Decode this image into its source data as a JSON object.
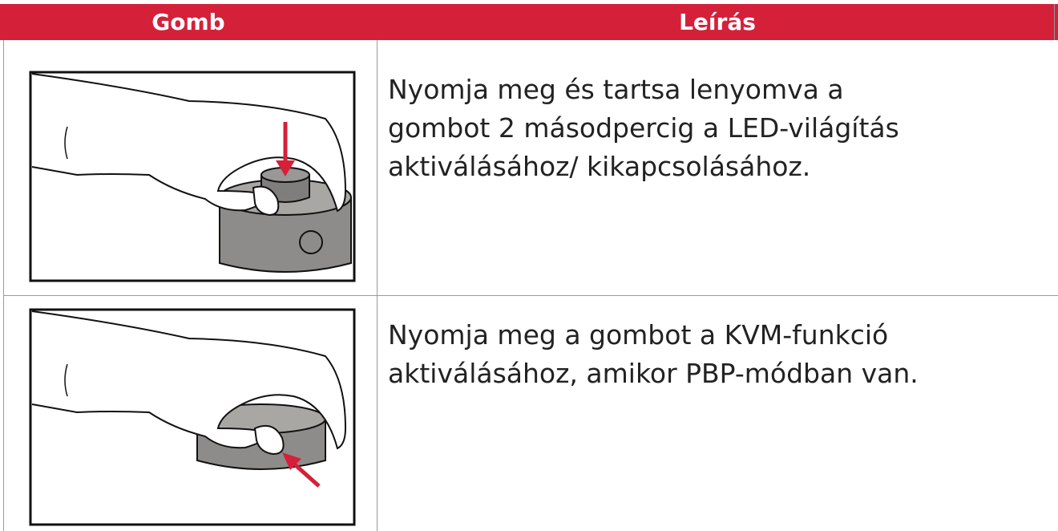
{
  "table": {
    "headers": [
      "Gomb",
      "Leírás"
    ],
    "rows": [
      {
        "description": "Nyomja meg és tartsa lenyomva a gombot 2 másodpercig a LED-világítás aktiválásához/ kikapcsolásához."
      },
      {
        "description": "Nyomja meg a gombot a KVM-funkció aktiválásához, amikor PBP-módban van."
      }
    ]
  }
}
